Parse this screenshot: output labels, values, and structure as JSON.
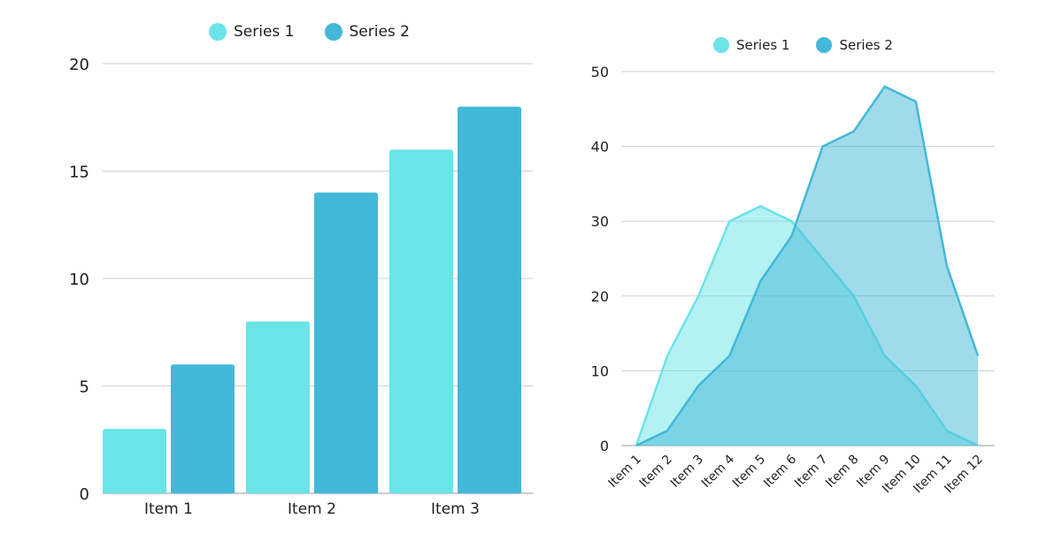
{
  "colors": {
    "series1": "#6ae4e8",
    "series2": "#42b8d8",
    "grid": "#cfcfcf",
    "axis": "#9a9a9a"
  },
  "chart_data": [
    {
      "type": "bar",
      "legend_position": "top-center",
      "categories": [
        "Item 1",
        "Item 2",
        "Item 3"
      ],
      "series": [
        {
          "name": "Series 1",
          "values": [
            3,
            8,
            16
          ]
        },
        {
          "name": "Series 2",
          "values": [
            6,
            14,
            18
          ]
        }
      ],
      "ylim": [
        0,
        20
      ],
      "yticks": [
        0,
        5,
        10,
        15,
        20
      ],
      "grid": true
    },
    {
      "type": "area",
      "legend_position": "top-center",
      "categories": [
        "Item 1",
        "Item 2",
        "Item 3",
        "Item 4",
        "Item 5",
        "Item 6",
        "Item 7",
        "Item 8",
        "Item 9",
        "Item 10",
        "Item 11",
        "Item 12"
      ],
      "series": [
        {
          "name": "Series 1",
          "values": [
            0,
            12,
            20,
            30,
            32,
            30,
            25,
            20,
            12,
            8,
            2,
            0
          ]
        },
        {
          "name": "Series 2",
          "values": [
            0,
            2,
            8,
            12,
            22,
            28,
            40,
            42,
            48,
            46,
            24,
            12
          ]
        }
      ],
      "ylim": [
        0,
        50
      ],
      "yticks": [
        0,
        10,
        20,
        30,
        40,
        50
      ],
      "grid": true
    }
  ]
}
